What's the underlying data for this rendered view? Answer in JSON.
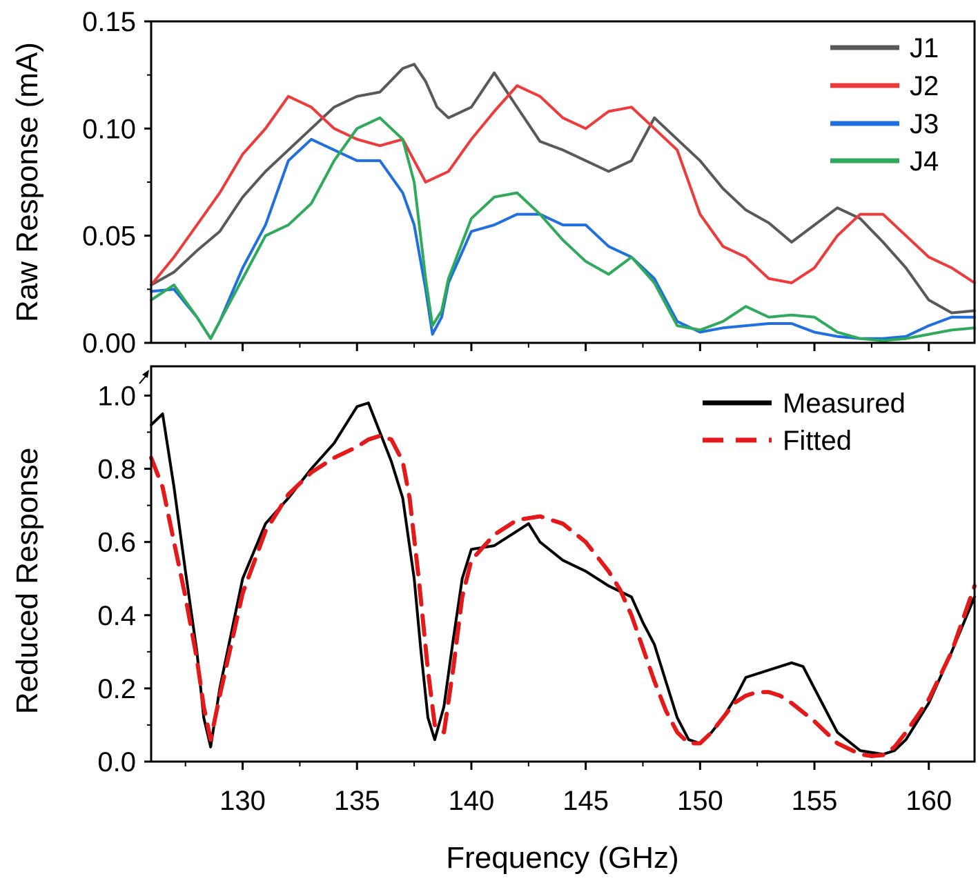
{
  "chart_data": [
    {
      "type": "line",
      "panel": "top",
      "title": "",
      "xlabel": "",
      "ylabel": "Raw Response (mA)",
      "xlim": [
        126,
        162
      ],
      "ylim": [
        0,
        0.15
      ],
      "yticks": [
        "0.00",
        "0.05",
        "0.10",
        "0.15"
      ],
      "legend_position": "top-right",
      "series": [
        {
          "name": "J1",
          "color": "#595959",
          "x": [
            126,
            127,
            128,
            129,
            130,
            131,
            132,
            133,
            134,
            135,
            136,
            137,
            137.5,
            138,
            138.5,
            139,
            140,
            141,
            142,
            143,
            144,
            145,
            146,
            147,
            148,
            149,
            150,
            151,
            152,
            153,
            154,
            155,
            156,
            157,
            158,
            159,
            160,
            161,
            162
          ],
          "y": [
            0.027,
            0.033,
            0.043,
            0.052,
            0.068,
            0.08,
            0.09,
            0.1,
            0.11,
            0.115,
            0.117,
            0.128,
            0.13,
            0.122,
            0.11,
            0.105,
            0.11,
            0.126,
            0.11,
            0.094,
            0.09,
            0.085,
            0.08,
            0.085,
            0.105,
            0.095,
            0.085,
            0.072,
            0.062,
            0.056,
            0.047,
            0.055,
            0.063,
            0.058,
            0.047,
            0.035,
            0.02,
            0.014,
            0.015
          ]
        },
        {
          "name": "J2",
          "color": "#ee3a3a",
          "x": [
            126,
            127,
            128,
            129,
            130,
            131,
            132,
            133,
            134,
            135,
            136,
            137,
            138,
            139,
            140,
            141,
            142,
            143,
            144,
            145,
            146,
            147,
            148,
            149,
            150,
            151,
            152,
            153,
            154,
            155,
            156,
            157,
            158,
            159,
            160,
            161,
            162
          ],
          "y": [
            0.027,
            0.04,
            0.055,
            0.07,
            0.088,
            0.1,
            0.115,
            0.11,
            0.1,
            0.095,
            0.092,
            0.095,
            0.075,
            0.08,
            0.095,
            0.108,
            0.12,
            0.115,
            0.105,
            0.1,
            0.108,
            0.11,
            0.1,
            0.09,
            0.06,
            0.045,
            0.04,
            0.03,
            0.028,
            0.035,
            0.05,
            0.06,
            0.06,
            0.05,
            0.04,
            0.035,
            0.028
          ]
        },
        {
          "name": "J3",
          "color": "#1f6fe0",
          "x": [
            126,
            127,
            128,
            128.6,
            129,
            130,
            131,
            132,
            133,
            134,
            135,
            136,
            137,
            137.5,
            138,
            138.3,
            138.7,
            139,
            140,
            141,
            142,
            143,
            144,
            145,
            146,
            147,
            148,
            149,
            150,
            151,
            152,
            153,
            154,
            155,
            156,
            157,
            158,
            159,
            160,
            161,
            162
          ],
          "y": [
            0.024,
            0.025,
            0.012,
            0.002,
            0.01,
            0.035,
            0.055,
            0.085,
            0.095,
            0.09,
            0.085,
            0.085,
            0.07,
            0.055,
            0.025,
            0.004,
            0.012,
            0.028,
            0.052,
            0.055,
            0.06,
            0.06,
            0.055,
            0.055,
            0.045,
            0.04,
            0.03,
            0.01,
            0.005,
            0.007,
            0.008,
            0.009,
            0.009,
            0.005,
            0.003,
            0.002,
            0.002,
            0.003,
            0.008,
            0.012,
            0.012
          ]
        },
        {
          "name": "J4",
          "color": "#2faa5a",
          "x": [
            126,
            127,
            128,
            128.6,
            129,
            130,
            131,
            132,
            133,
            134,
            135,
            136,
            137,
            137.5,
            138,
            138.3,
            138.7,
            139,
            140,
            141,
            142,
            143,
            144,
            145,
            146,
            147,
            148,
            149,
            150,
            151,
            152,
            153,
            154,
            155,
            156,
            157,
            158,
            159,
            160,
            161,
            162
          ],
          "y": [
            0.02,
            0.027,
            0.012,
            0.002,
            0.01,
            0.03,
            0.05,
            0.055,
            0.065,
            0.085,
            0.1,
            0.105,
            0.095,
            0.075,
            0.03,
            0.008,
            0.015,
            0.03,
            0.058,
            0.068,
            0.07,
            0.06,
            0.048,
            0.038,
            0.032,
            0.04,
            0.028,
            0.008,
            0.006,
            0.01,
            0.017,
            0.012,
            0.013,
            0.012,
            0.005,
            0.002,
            0.001,
            0.002,
            0.004,
            0.006,
            0.007
          ]
        }
      ]
    },
    {
      "type": "line",
      "panel": "bottom",
      "title": "",
      "xlabel": "Frequency (GHz)",
      "ylabel": "Reduced Response",
      "xlim": [
        126,
        162
      ],
      "ylim": [
        0,
        1.08
      ],
      "xticks": [
        "130",
        "135",
        "140",
        "145",
        "150",
        "155",
        "160"
      ],
      "yticks": [
        "0.0",
        "0.2",
        "0.4",
        "0.6",
        "0.8",
        "1.0"
      ],
      "legend_position": "top-right",
      "series": [
        {
          "name": "Measured",
          "color": "#000000",
          "style": "solid",
          "x": [
            126,
            126.5,
            127,
            127.5,
            128,
            128.3,
            128.6,
            129,
            129.5,
            130,
            131,
            132,
            133,
            134,
            135,
            135.5,
            136,
            136.5,
            137,
            137.5,
            137.8,
            138.1,
            138.4,
            138.8,
            139.2,
            139.6,
            140,
            141,
            142,
            142.5,
            143,
            144,
            145,
            146,
            147,
            147.5,
            148,
            148.5,
            149,
            149.5,
            150,
            150.5,
            151,
            151.5,
            152,
            153,
            154,
            154.5,
            155,
            155.5,
            156,
            157,
            158,
            158.5,
            159,
            160,
            161,
            162
          ],
          "y": [
            0.92,
            0.95,
            0.75,
            0.52,
            0.3,
            0.12,
            0.04,
            0.2,
            0.35,
            0.5,
            0.65,
            0.72,
            0.8,
            0.87,
            0.97,
            0.98,
            0.9,
            0.82,
            0.72,
            0.5,
            0.3,
            0.12,
            0.06,
            0.15,
            0.33,
            0.5,
            0.58,
            0.59,
            0.63,
            0.65,
            0.6,
            0.55,
            0.52,
            0.48,
            0.45,
            0.38,
            0.32,
            0.22,
            0.12,
            0.06,
            0.05,
            0.08,
            0.12,
            0.17,
            0.23,
            0.25,
            0.27,
            0.26,
            0.2,
            0.14,
            0.08,
            0.03,
            0.02,
            0.03,
            0.06,
            0.16,
            0.3,
            0.45
          ]
        },
        {
          "name": "Fitted",
          "color": "#e41a1a",
          "style": "dashed",
          "x": [
            126,
            126.5,
            127,
            127.5,
            128,
            128.3,
            128.6,
            129,
            129.5,
            130,
            131,
            132,
            133,
            134,
            135,
            135.5,
            136,
            136.5,
            137,
            137.3,
            137.7,
            138.1,
            138.4,
            138.8,
            139.2,
            139.6,
            140,
            141,
            142,
            143,
            144,
            145,
            146,
            146.5,
            147,
            147.5,
            148,
            148.5,
            149,
            149.5,
            150,
            150.5,
            151,
            151.5,
            152,
            152.5,
            153,
            153.5,
            154,
            155,
            156,
            157,
            157.5,
            158,
            158.5,
            159,
            160,
            161,
            162
          ],
          "y": [
            0.83,
            0.75,
            0.6,
            0.45,
            0.28,
            0.15,
            0.06,
            0.18,
            0.32,
            0.46,
            0.63,
            0.73,
            0.79,
            0.83,
            0.86,
            0.88,
            0.89,
            0.88,
            0.82,
            0.72,
            0.5,
            0.25,
            0.1,
            0.08,
            0.25,
            0.45,
            0.55,
            0.62,
            0.66,
            0.67,
            0.65,
            0.6,
            0.52,
            0.47,
            0.4,
            0.31,
            0.22,
            0.14,
            0.08,
            0.05,
            0.05,
            0.08,
            0.12,
            0.16,
            0.18,
            0.19,
            0.19,
            0.18,
            0.16,
            0.11,
            0.05,
            0.02,
            0.015,
            0.018,
            0.04,
            0.08,
            0.17,
            0.3,
            0.48
          ]
        }
      ]
    }
  ]
}
